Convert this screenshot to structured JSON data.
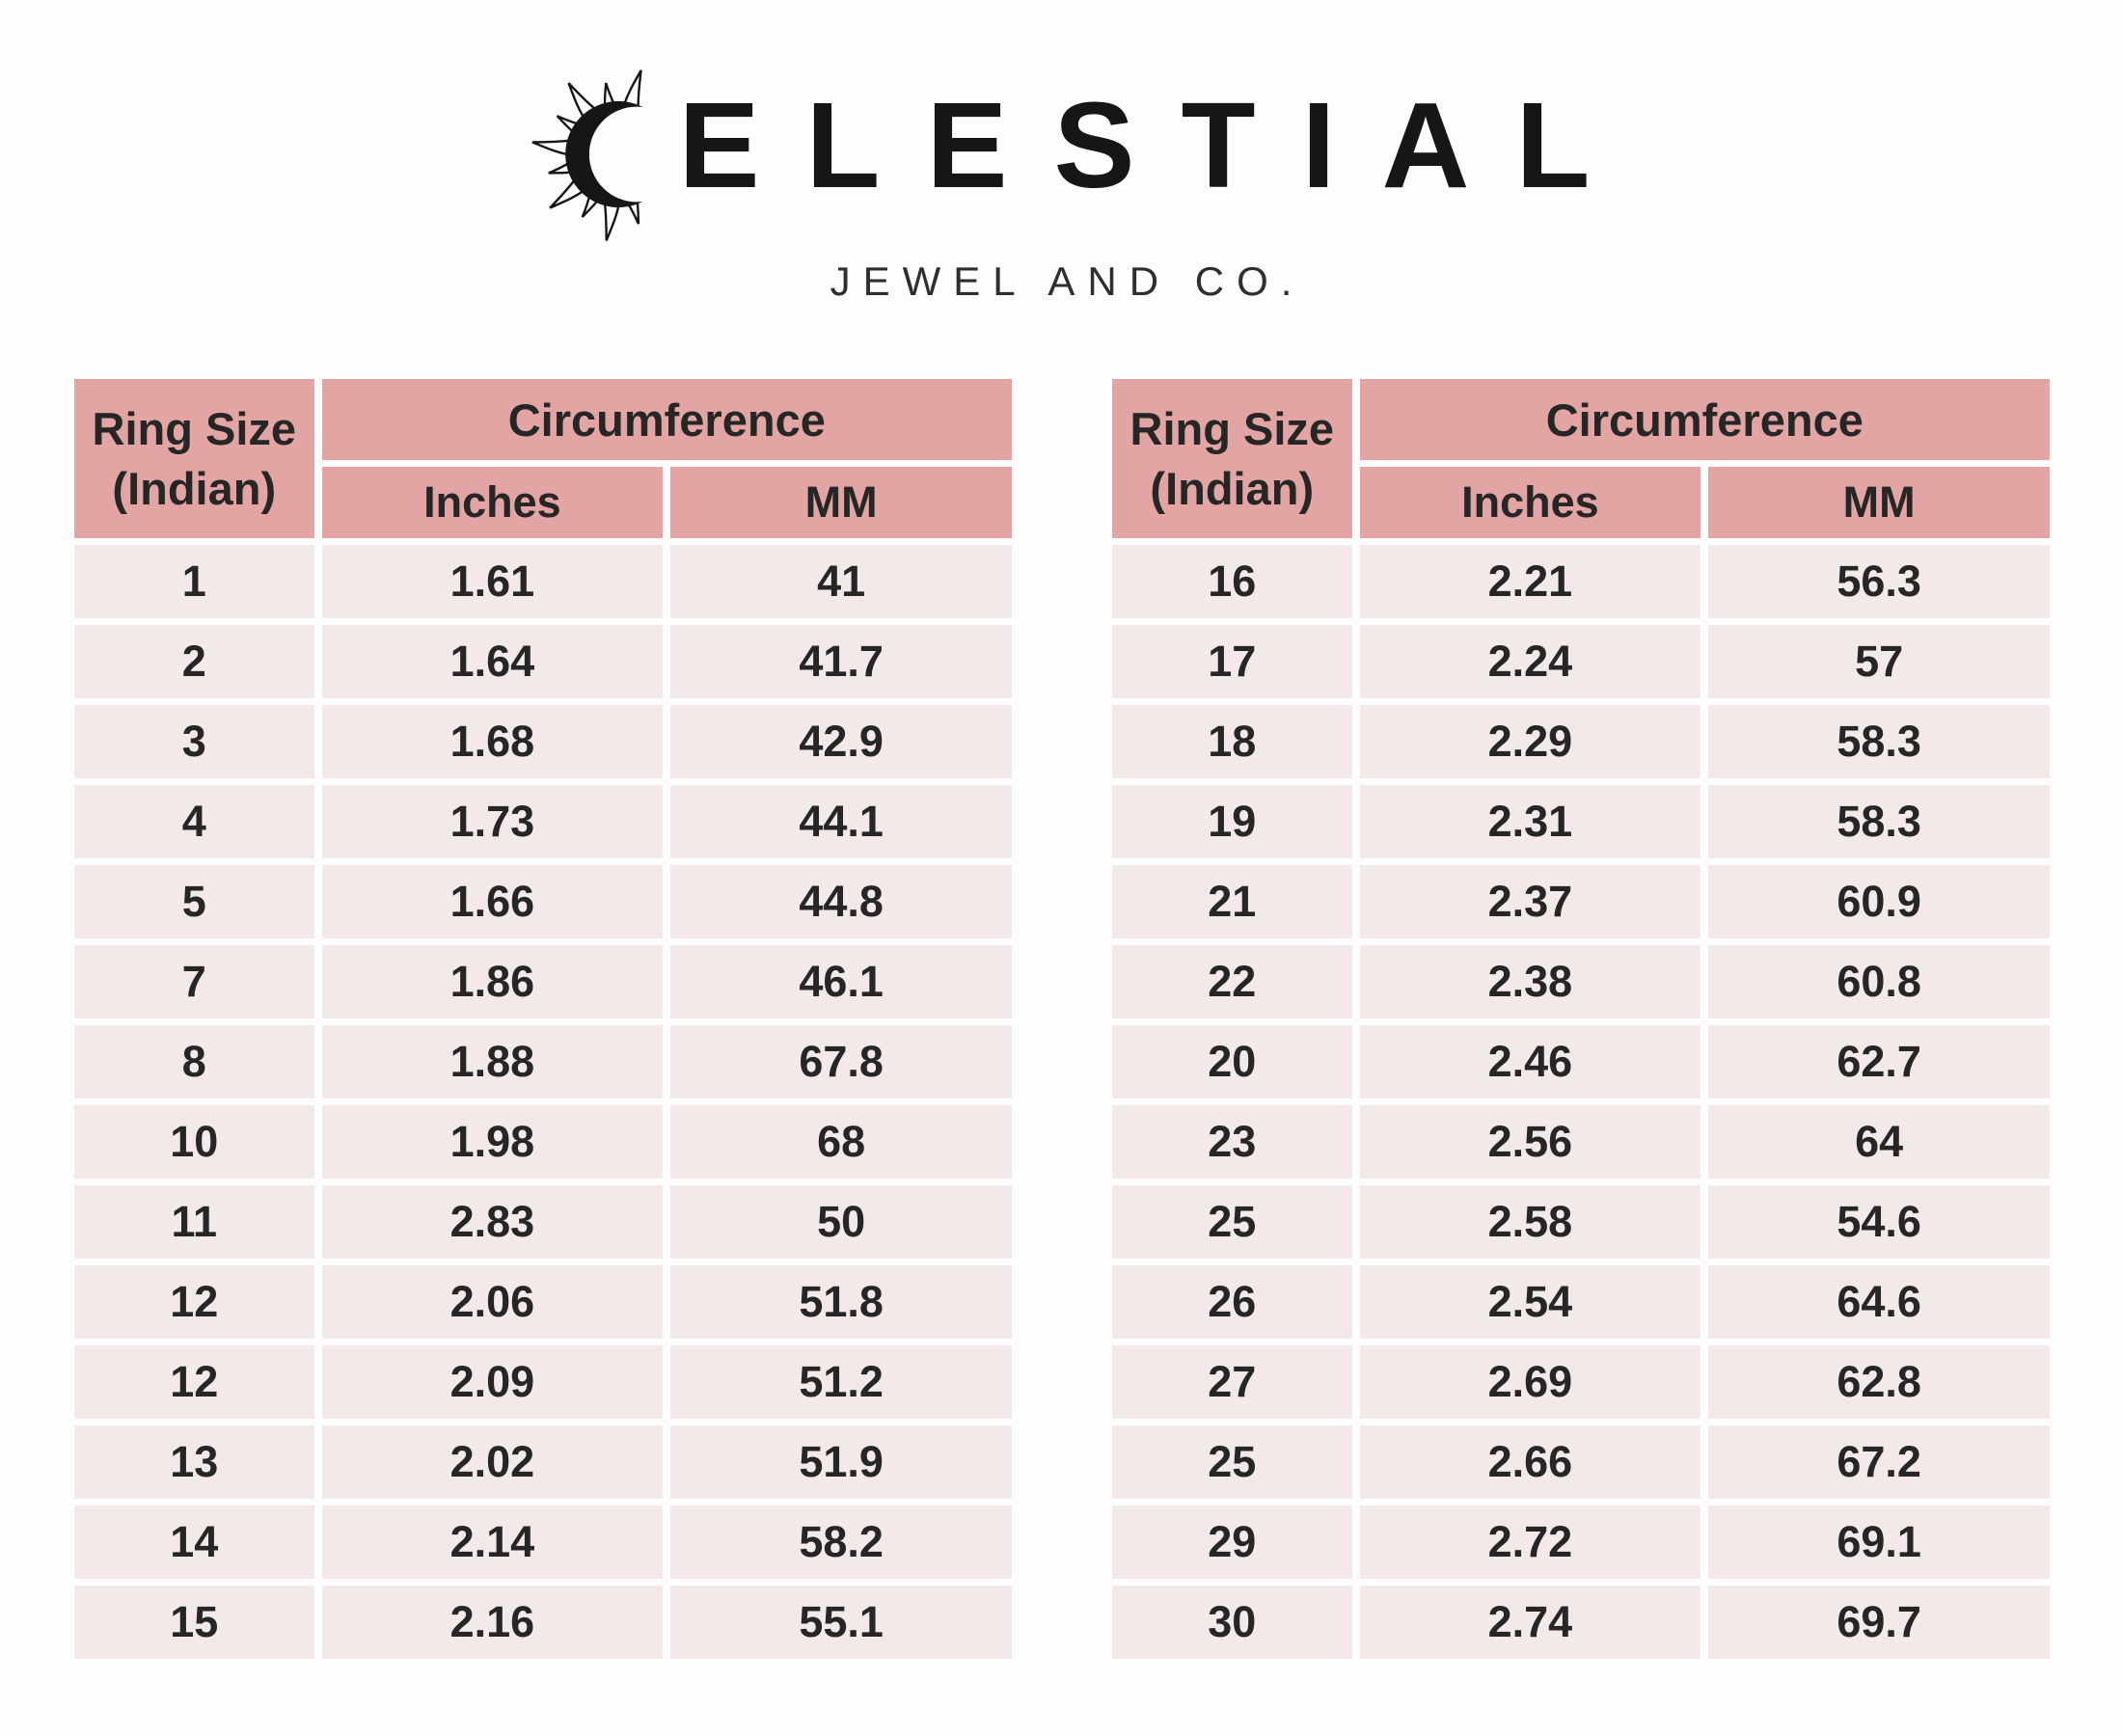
{
  "brand": {
    "wordmark": "CELESTIAL",
    "wordmark_after_icon": "ELESTIAL",
    "tagline": "JEWEL AND CO.",
    "icon": "sun-crescent-icon"
  },
  "colors": {
    "header_pink": "#e3a5a3",
    "row_pink": "#f2e9e8",
    "background": "#fdfdfd",
    "table_text": "#262626",
    "logo_black": "#161616"
  },
  "tables": [
    {
      "name": "ring-size-table-left",
      "headers": {
        "ring_size_line1": "Ring Size",
        "ring_size_line2": "(Indian)",
        "circumference": "Circumference",
        "inches": "Inches",
        "mm": "MM"
      },
      "rows": [
        [
          "1",
          "1.61",
          "41"
        ],
        [
          "2",
          "1.64",
          "41.7"
        ],
        [
          "3",
          "1.68",
          "42.9"
        ],
        [
          "4",
          "1.73",
          "44.1"
        ],
        [
          "5",
          "1.66",
          "44.8"
        ],
        [
          "7",
          "1.86",
          "46.1"
        ],
        [
          "8",
          "1.88",
          "67.8"
        ],
        [
          "10",
          "1.98",
          "68"
        ],
        [
          "11",
          "2.83",
          "50"
        ],
        [
          "12",
          "2.06",
          "51.8"
        ],
        [
          "12",
          "2.09",
          "51.2"
        ],
        [
          "13",
          "2.02",
          "51.9"
        ],
        [
          "14",
          "2.14",
          "58.2"
        ],
        [
          "15",
          "2.16",
          "55.1"
        ]
      ]
    },
    {
      "name": "ring-size-table-right",
      "headers": {
        "ring_size_line1": "Ring Size",
        "ring_size_line2": "(Indian)",
        "circumference": "Circumference",
        "inches": "Inches",
        "mm": "MM"
      },
      "rows": [
        [
          "16",
          "2.21",
          "56.3"
        ],
        [
          "17",
          "2.24",
          "57"
        ],
        [
          "18",
          "2.29",
          "58.3"
        ],
        [
          "19",
          "2.31",
          "58.3"
        ],
        [
          "21",
          "2.37",
          "60.9"
        ],
        [
          "22",
          "2.38",
          "60.8"
        ],
        [
          "20",
          "2.46",
          "62.7"
        ],
        [
          "23",
          "2.56",
          "64"
        ],
        [
          "25",
          "2.58",
          "54.6"
        ],
        [
          "26",
          "2.54",
          "64.6"
        ],
        [
          "27",
          "2.69",
          "62.8"
        ],
        [
          "25",
          "2.66",
          "67.2"
        ],
        [
          "29",
          "2.72",
          "69.1"
        ],
        [
          "30",
          "2.74",
          "69.7"
        ]
      ]
    }
  ]
}
